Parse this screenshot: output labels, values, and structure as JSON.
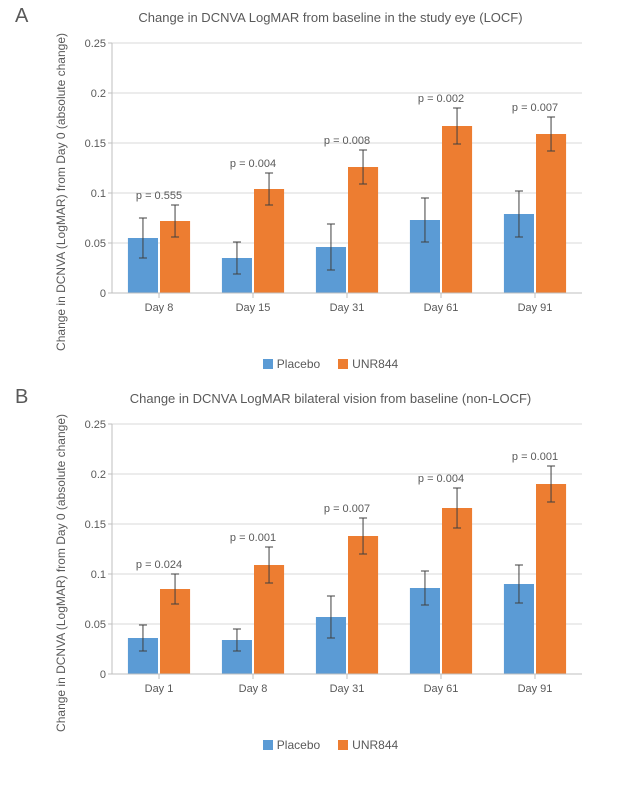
{
  "colors": {
    "placebo": "#5b9bd5",
    "unr844": "#ed7d31",
    "grid": "#d9d9d9",
    "axis": "#bfbfbf",
    "text": "#595959",
    "error_bar": "#404040",
    "background": "#ffffff"
  },
  "legend": {
    "placebo_label": "Placebo",
    "unr844_label": "UNR844"
  },
  "panelA": {
    "label": "A",
    "title": "Change in DCNVA LogMAR from baseline in the study eye (LOCF)",
    "ylabel": "Change in DCNVA (LogMAR) from Day 0\n(absolute change)",
    "ylim": [
      0,
      0.25
    ],
    "ytick_step": 0.05,
    "categories": [
      "Day 8",
      "Day 15",
      "Day 31",
      "Day 61",
      "Day 91"
    ],
    "placebo_values": [
      0.055,
      0.035,
      0.046,
      0.073,
      0.079
    ],
    "placebo_err": [
      0.02,
      0.016,
      0.023,
      0.022,
      0.023
    ],
    "unr844_values": [
      0.072,
      0.104,
      0.126,
      0.167,
      0.159
    ],
    "unr844_err": [
      0.016,
      0.016,
      0.017,
      0.018,
      0.017
    ],
    "p_values": [
      "p = 0.555",
      "p = 0.004",
      "p = 0.008",
      "p = 0.002",
      "p = 0.007"
    ],
    "bar_width": 0.32,
    "title_fontsize": 13,
    "label_fontsize": 12,
    "tick_fontsize": 11
  },
  "panelB": {
    "label": "B",
    "title": "Change in DCNVA LogMAR bilateral vision from baseline (non-LOCF)",
    "ylabel": "Change in DCNVA (LogMAR) from Day 0\n(absolute change)",
    "ylim": [
      0,
      0.25
    ],
    "ytick_step": 0.05,
    "categories": [
      "Day 1",
      "Day 8",
      "Day 31",
      "Day 61",
      "Day 91"
    ],
    "placebo_values": [
      0.036,
      0.034,
      0.057,
      0.086,
      0.09
    ],
    "placebo_err": [
      0.013,
      0.011,
      0.021,
      0.017,
      0.019
    ],
    "unr844_values": [
      0.085,
      0.109,
      0.138,
      0.166,
      0.19
    ],
    "unr844_err": [
      0.015,
      0.018,
      0.018,
      0.02,
      0.018
    ],
    "p_values": [
      "p = 0.024",
      "p = 0.001",
      "p = 0.007",
      "p = 0.004",
      "p = 0.001"
    ],
    "bar_width": 0.32,
    "title_fontsize": 13,
    "label_fontsize": 12,
    "tick_fontsize": 11
  }
}
